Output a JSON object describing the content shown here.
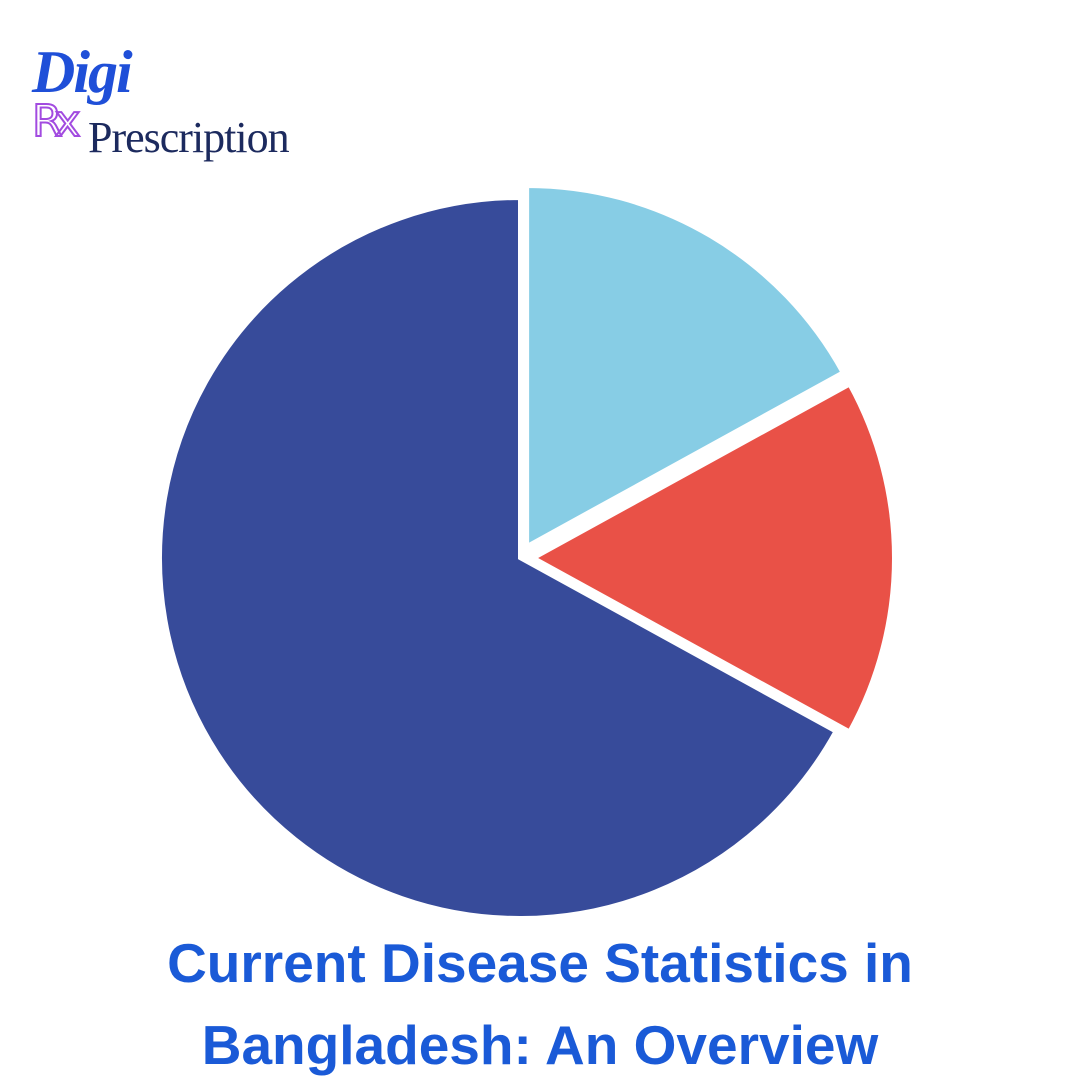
{
  "logo": {
    "brand": "Digi",
    "symbol": "Rx",
    "tagline": "Prescription"
  },
  "chart_data": {
    "type": "pie",
    "title": "Current Disease Statistics in Bangladesh: An Overview",
    "values": [
      17,
      16,
      67
    ],
    "colors": [
      "#87cde5",
      "#e95147",
      "#374b9a"
    ]
  }
}
